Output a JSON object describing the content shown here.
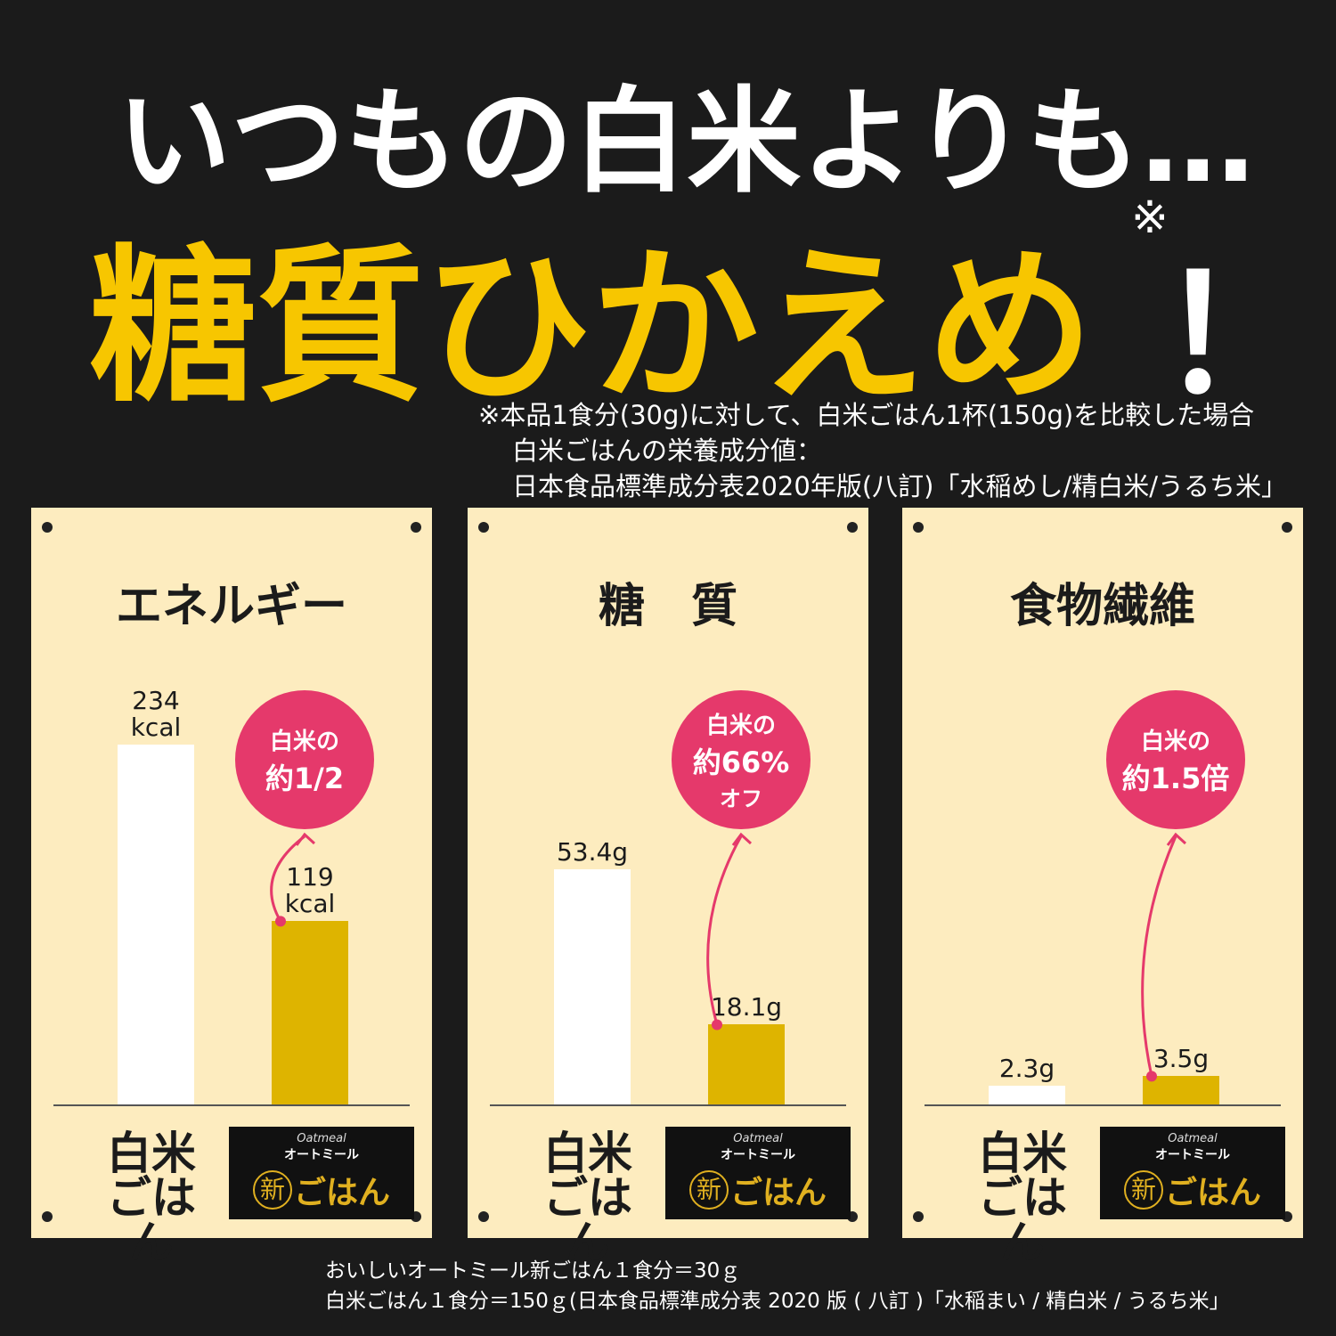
{
  "header": {
    "line1": "いつもの白米よりも…",
    "line2": "糖質ひかえめ",
    "mark": "※",
    "exclaim": "！"
  },
  "notes": [
    "※本品1食分(30g)に対して、白米ごはん1杯(150g)を比較した場合",
    "白米ごはんの栄養成分値：",
    "日本食品標準成分表2020年版(八訂)「水稲めし/精白米/うるち米」"
  ],
  "logo": {
    "brand": "Oatmeal",
    "name": "オートミール",
    "mark": "新",
    "text": "ごはん"
  },
  "chart_data": [
    {
      "type": "bar",
      "title": "エネルギー",
      "categories": [
        "白米ごはん",
        null
      ],
      "values": [
        234,
        119
      ],
      "value_labels": [
        "234 kcal",
        "119 kcal"
      ],
      "colors": [
        "#ffffff",
        "#deb400"
      ],
      "ylim": [
        0,
        272
      ],
      "annotation": {
        "line1": "白米の",
        "line2": "約1/2"
      }
    },
    {
      "type": "bar",
      "title": "糖　質",
      "categories": [
        "白米ごはん",
        null
      ],
      "values": [
        53.4,
        18.1
      ],
      "value_labels": [
        "53.4g",
        "18.1g"
      ],
      "colors": [
        "#ffffff",
        "#deb400"
      ],
      "ylim": [
        0,
        95
      ],
      "annotation": {
        "line1": "白米の",
        "line2": "約66%",
        "line3": "オフ"
      }
    },
    {
      "type": "bar",
      "title": "食物繊維",
      "categories": [
        "白米ごはん",
        null
      ],
      "values": [
        2.3,
        3.5
      ],
      "value_labels": [
        "2.3g",
        "3.5g"
      ],
      "colors": [
        "#ffffff",
        "#deb400"
      ],
      "ylim": [
        0,
        52
      ],
      "annotation": {
        "line1": "白米の",
        "line2": "約1.5倍"
      }
    }
  ],
  "footer": [
    "おいしいオートミール新ごはん１食分＝30ｇ",
    "白米ごはん１食分＝150ｇ(日本食品標準成分表 2020 版 ( 八訂 )「水稲まい / 精白米 / うるち米」"
  ]
}
